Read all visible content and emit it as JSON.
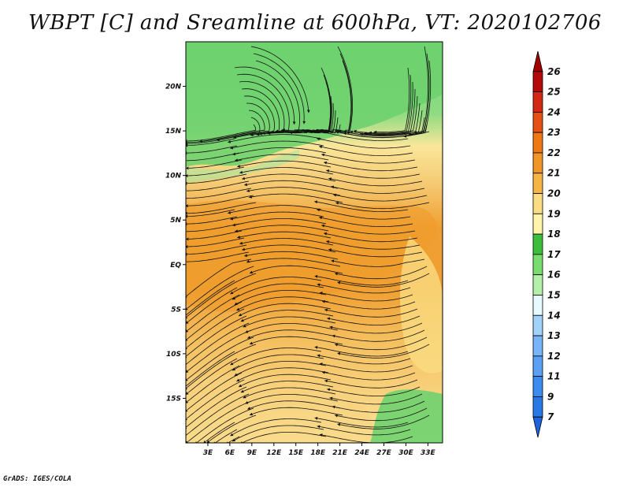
{
  "title": "WBPT [C] and Sreamline at 600hPa, VT: 2020102706",
  "credit": "GrADS: IGES/COLA",
  "map": {
    "x_ticks": [
      "3E",
      "6E",
      "9E",
      "12E",
      "15E",
      "18E",
      "21E",
      "24E",
      "27E",
      "30E",
      "33E"
    ],
    "x_tick_values": [
      3,
      6,
      9,
      12,
      15,
      18,
      21,
      24,
      27,
      30,
      33
    ],
    "y_ticks": [
      "20N",
      "15N",
      "10N",
      "5N",
      "EQ",
      "5S",
      "10S",
      "15S"
    ],
    "y_tick_values": [
      20,
      15,
      10,
      5,
      0,
      -5,
      -10,
      -15
    ],
    "lon_range": [
      0,
      35
    ],
    "lat_range": [
      -20,
      25
    ]
  },
  "colorbar": {
    "labels": [
      "7",
      "9",
      "11",
      "12",
      "13",
      "14",
      "15",
      "16",
      "17",
      "18",
      "19",
      "20",
      "21",
      "22",
      "23",
      "24",
      "25",
      "26"
    ],
    "colors": [
      "#1e64dc",
      "#2878e6",
      "#3c8cf0",
      "#5aa0f5",
      "#78b4fa",
      "#a0d2fa",
      "#e6faff",
      "#b4f0aa",
      "#78dc6e",
      "#3cbe3c",
      "#fff5aa",
      "#fadc82",
      "#f5b446",
      "#f09628",
      "#f07814",
      "#e65014",
      "#d22814",
      "#b40a0a",
      "#a00000"
    ]
  },
  "colors": {
    "green": "#6ed26e",
    "light_green": "#a8e6a0",
    "yellow": "#fae69a",
    "light_orange": "#f5c870",
    "orange": "#f0a032",
    "dark_orange": "#e88c1e"
  }
}
